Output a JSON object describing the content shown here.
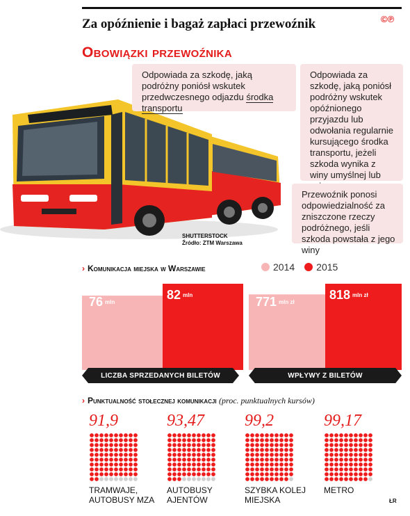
{
  "header": {
    "title": "Za opóźnienie i bagaż zapłaci przewoźnik",
    "copyright": "©℗"
  },
  "obligations": {
    "heading": "Obowiązki przewoźnika",
    "callout_1_pre": "Odpowiada za szkodę, jaką podróżny poniósł wskutek przedwczesnego odjazdu ",
    "callout_1_hl": "środka transportu",
    "callout_2": "Odpowiada za szkodę, jaką poniósł podróżny wskutek opóźnionego przyjazdu lub odwołania regularnie kursującego środka transportu, jeżeli szkoda wynika z winy umyślnej lub rażącego niedbalstwa przewoźnika",
    "callout_3": "Przewoźnik ponosi odpowiedzialność za zniszczone rzeczy podróżnego, jeśli szkoda powstała z jego winy",
    "photo_credit": "SHUTTERSTOCK",
    "source": "Źródło: ZTM Warszawa"
  },
  "chart_data": [
    {
      "type": "bar",
      "title": "Komunikacja miejska w Warszawie",
      "legend": [
        "2014",
        "2015"
      ],
      "colors": {
        "2014": "#f7b5b5",
        "2015": "#ee1c1c"
      },
      "groups": [
        {
          "label": "Liczba sprzedanych biletów",
          "unit": "mln",
          "categories": [
            "2014",
            "2015"
          ],
          "values": [
            76,
            82
          ],
          "value_labels": [
            "76",
            "82"
          ]
        },
        {
          "label": "Wpływy z biletów",
          "unit": "mln zł",
          "categories": [
            "2014",
            "2015"
          ],
          "values": [
            771,
            818
          ],
          "value_labels": [
            "771",
            "818"
          ]
        }
      ]
    },
    {
      "type": "dot-matrix",
      "title": "Punktualność stołecznej komunikacji",
      "note": "(proc. punktualnych kursów)",
      "categories": [
        "Tramwaje, autobusy MZA",
        "Autobusy ajentów",
        "Szybka Kolej Miejska",
        "Metro"
      ],
      "values": [
        91.9,
        93.47,
        99.2,
        99.17
      ],
      "value_labels": [
        "91,9",
        "93,47",
        "99,2",
        "99,17"
      ]
    }
  ],
  "signature": "ŁR"
}
